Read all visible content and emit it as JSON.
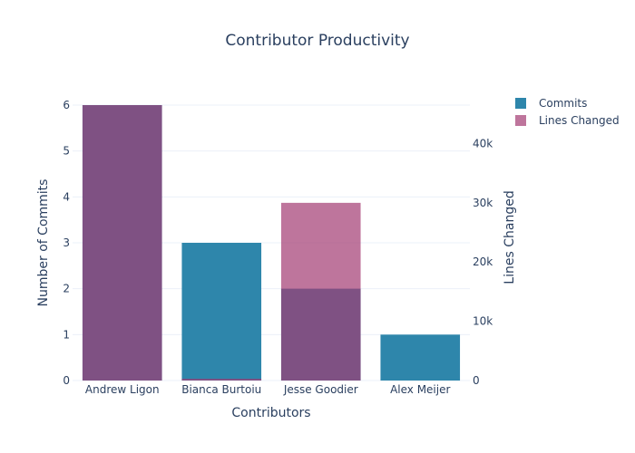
{
  "chart_data": {
    "type": "bar",
    "title": "Contributor Productivity",
    "xlabel": "Contributors",
    "ylabel": "Number of Commits",
    "y2label": "Lines Changed",
    "categories": [
      "Andrew Ligon",
      "Bianca Burtoiu",
      "Jesse Goodier",
      "Alex Meijer"
    ],
    "ylim": [
      0,
      6
    ],
    "y2lim": [
      0,
      46500
    ],
    "yticks": [
      "0",
      "1",
      "2",
      "3",
      "4",
      "5",
      "6"
    ],
    "y2ticks": [
      {
        "value": 0,
        "label": "0"
      },
      {
        "value": 10000,
        "label": "10k"
      },
      {
        "value": 20000,
        "label": "20k"
      },
      {
        "value": 30000,
        "label": "30k"
      },
      {
        "value": 40000,
        "label": "40k"
      }
    ],
    "grid": true,
    "legend_position": "top-right",
    "series": [
      {
        "name": "Commits",
        "axis": "left",
        "color": "#2e86ab",
        "values": [
          6,
          3,
          2,
          1
        ]
      },
      {
        "name": "Lines Changed",
        "axis": "right",
        "color": "#a23b72",
        "opacity": 0.7,
        "values": [
          46500,
          300,
          30000,
          0
        ]
      }
    ]
  }
}
